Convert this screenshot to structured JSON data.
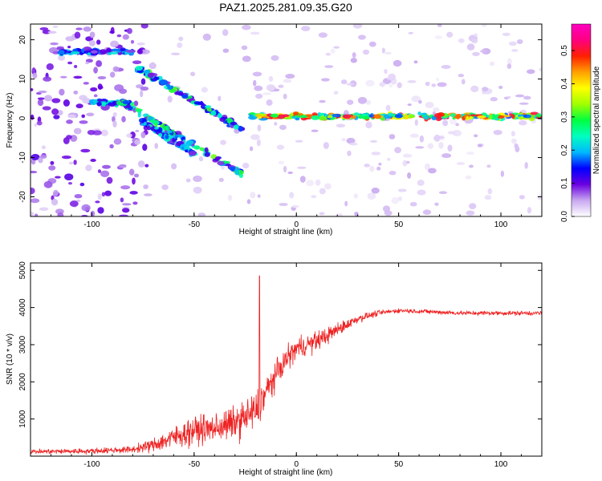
{
  "chart_data": [
    {
      "type": "heatmap",
      "title": "PAZ1.2025.281.09.35.G20",
      "xlabel": "Height of straight line (km)",
      "ylabel": "Frequency (Hz)",
      "xlim": [
        -130,
        120
      ],
      "ylim": [
        -25,
        24
      ],
      "x_ticks": [
        -100,
        -50,
        0,
        50,
        100
      ],
      "y_ticks": [
        -20,
        -10,
        0,
        10,
        20
      ],
      "colorbar": {
        "label": "Normalized spectral amplitude",
        "range": [
          0,
          0.58
        ],
        "ticks": [
          0.0,
          0.1,
          0.2,
          0.3,
          0.4,
          0.5
        ],
        "tick_labels": [
          "0.0",
          "0.1",
          "0.2",
          "0.3",
          "0.4",
          "0.5"
        ],
        "colors": [
          "#ffffff",
          "#c8a8f0",
          "#6a00e0",
          "#0000ff",
          "#00b8ff",
          "#00ffc0",
          "#00ff40",
          "#a0ff00",
          "#ffff00",
          "#ffa000",
          "#ff2000",
          "#ff0080",
          "#ff00c0"
        ]
      },
      "features": [
        {
          "name": "main carrier line",
          "x_range": [
            -22,
            120
          ],
          "freq": 0.5,
          "amplitude": 0.4
        },
        {
          "name": "descending branch A",
          "from": [
            -78,
            13
          ],
          "to": [
            -26,
            -3
          ],
          "amplitude": 0.25
        },
        {
          "name": "descending branch B",
          "from": [
            -85,
            4
          ],
          "to": [
            -27,
            -14
          ],
          "amplitude": 0.25
        },
        {
          "name": "low cluster",
          "from": [
            -75,
            -1
          ],
          "to": [
            -50,
            -9
          ],
          "amplitude": 0.2
        },
        {
          "name": "left patch high",
          "x_range": [
            -115,
            -80
          ],
          "freq": 17,
          "amplitude": 0.18
        },
        {
          "name": "left patch mid",
          "x_range": [
            -100,
            -80
          ],
          "freq": 4,
          "amplitude": 0.22
        }
      ]
    },
    {
      "type": "line",
      "title": "",
      "xlabel": "Height of straight line (km)",
      "ylabel": "SNR (10 * v/v)",
      "xlim": [
        -130,
        120
      ],
      "ylim": [
        0,
        5200
      ],
      "x_ticks": [
        -100,
        -50,
        0,
        50,
        100
      ],
      "y_ticks": [
        1000,
        2000,
        3000,
        4000,
        5000
      ],
      "series": [
        {
          "name": "SNR",
          "color": "#ee2222",
          "x": [
            -130,
            -100,
            -80,
            -70,
            -60,
            -50,
            -40,
            -30,
            -20,
            -17,
            -15,
            -10,
            -5,
            0,
            10,
            20,
            30,
            40,
            50,
            60,
            80,
            100,
            120
          ],
          "y": [
            120,
            140,
            180,
            300,
            500,
            700,
            750,
            900,
            1200,
            1500,
            1700,
            2200,
            2600,
            2900,
            3100,
            3400,
            3700,
            3850,
            3920,
            3900,
            3850,
            3850,
            3850
          ],
          "noise": [
            90,
            100,
            120,
            250,
            400,
            500,
            500,
            600,
            700,
            700,
            600,
            450,
            450,
            400,
            350,
            250,
            150,
            100,
            80,
            80,
            80,
            80,
            80
          ],
          "spike": {
            "x": -18,
            "y": 4850
          }
        }
      ]
    }
  ]
}
